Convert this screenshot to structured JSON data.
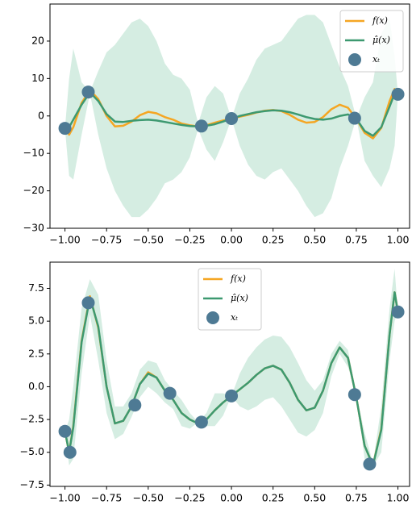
{
  "chart_data": [
    {
      "type": "line",
      "x": [
        -1,
        -0.975,
        -0.95,
        -0.9,
        -0.85,
        -0.8,
        -0.75,
        -0.7,
        -0.65,
        -0.6,
        -0.55,
        -0.5,
        -0.45,
        -0.4,
        -0.35,
        -0.3,
        -0.25,
        -0.2,
        -0.15,
        -0.1,
        -0.05,
        0,
        0.05,
        0.1,
        0.15,
        0.2,
        0.25,
        0.3,
        0.35,
        0.4,
        0.45,
        0.5,
        0.55,
        0.6,
        0.65,
        0.7,
        0.75,
        0.8,
        0.85,
        0.9,
        0.95,
        0.98,
        1.0
      ],
      "series": [
        {
          "name": "f(x)",
          "color": "#f5a623",
          "values": [
            -3.4,
            -5.0,
            -3.0,
            3.5,
            6.9,
            4.5,
            0,
            -2.8,
            -2.6,
            -1.5,
            0.2,
            1.1,
            0.7,
            -0.3,
            -1.0,
            -2.0,
            -2.5,
            -2.8,
            -2.5,
            -1.8,
            -1.2,
            -0.7,
            -0.2,
            0.3,
            0.9,
            1.4,
            1.6,
            1.3,
            0.3,
            -1.0,
            -1.8,
            -1.6,
            -0.3,
            1.8,
            3.0,
            2.2,
            -0.8,
            -4.5,
            -6.0,
            -3.2,
            4.0,
            7.2,
            5.7
          ]
        },
        {
          "name": "μ̂(x)",
          "color": "#3d9970",
          "values": [
            -3.3,
            -3.0,
            -1.0,
            3.0,
            6.3,
            4.0,
            0.5,
            -1.5,
            -1.6,
            -1.3,
            -1.1,
            -1.0,
            -1.2,
            -1.6,
            -2.0,
            -2.4,
            -2.7,
            -2.8,
            -2.6,
            -2.2,
            -1.5,
            -0.7,
            0,
            0.5,
            1.0,
            1.3,
            1.5,
            1.4,
            1.0,
            0.4,
            -0.3,
            -0.8,
            -1.0,
            -0.7,
            0,
            0.4,
            -0.7,
            -4.0,
            -5.3,
            -3.0,
            2.5,
            6.0,
            5.8
          ]
        }
      ],
      "band": {
        "color": "#d5ede2",
        "upper": [
          -3.3,
          10,
          18,
          9,
          6.5,
          12,
          17,
          19,
          22,
          25,
          26,
          24,
          20,
          14,
          11,
          10,
          7,
          -2,
          5,
          8,
          6,
          -0.7,
          6,
          10,
          15,
          18,
          19,
          20,
          23,
          26,
          27,
          27,
          25,
          19,
          13,
          8,
          -0.6,
          5,
          9,
          22,
          26,
          16,
          5.8
        ],
        "lower": [
          -3.3,
          -16,
          -17,
          -5,
          6,
          -5,
          -14,
          -20,
          -24,
          -27,
          -27,
          -25,
          -22,
          -18,
          -17,
          -15,
          -11,
          -3.5,
          -9,
          -12,
          -7,
          -0.7,
          -8,
          -13,
          -16,
          -17,
          -15,
          -14,
          -17,
          -20,
          -24,
          -27,
          -26,
          -22,
          -14,
          -8,
          -0.6,
          -12,
          -16,
          -19,
          -14,
          -8,
          5.8
        ]
      },
      "points": {
        "name": "xₜ",
        "color": "#4e7a94",
        "x": [
          -1,
          -0.86,
          -0.18,
          0,
          0.74,
          1.0
        ],
        "values": [
          -3.3,
          6.4,
          -2.7,
          -0.7,
          -0.6,
          5.8
        ]
      },
      "xlim": [
        -1.09,
        1.07
      ],
      "xticks": [
        {
          "value": -1,
          "label": "−1.00"
        },
        {
          "value": -0.75,
          "label": "−0.75"
        },
        {
          "value": -0.5,
          "label": "−0.50"
        },
        {
          "value": -0.25,
          "label": "−0.25"
        },
        {
          "value": 0,
          "label": "0.00"
        },
        0.25,
        {
          "value": 0.5,
          "label": "0.50"
        },
        0.75,
        {
          "value": 1,
          "label": "1.00"
        }
      ],
      "ylim": [
        -30,
        29.9
      ],
      "yticks": [
        {
          "value": -30,
          "label": "−30"
        },
        {
          "value": -20,
          "label": "−20"
        },
        {
          "value": -10,
          "label": "−10"
        },
        0,
        10,
        20
      ],
      "legend": "upper right"
    },
    {
      "type": "line",
      "x": [
        -1,
        -0.975,
        -0.95,
        -0.9,
        -0.85,
        -0.8,
        -0.75,
        -0.7,
        -0.65,
        -0.6,
        -0.55,
        -0.5,
        -0.45,
        -0.4,
        -0.35,
        -0.3,
        -0.25,
        -0.2,
        -0.15,
        -0.1,
        -0.05,
        0,
        0.05,
        0.1,
        0.15,
        0.2,
        0.25,
        0.3,
        0.35,
        0.4,
        0.45,
        0.5,
        0.55,
        0.6,
        0.65,
        0.7,
        0.75,
        0.8,
        0.85,
        0.9,
        0.95,
        0.98,
        1.0
      ],
      "series": [
        {
          "name": "f(x)",
          "color": "#f5a623",
          "values": [
            -3.4,
            -5.0,
            -3.0,
            3.5,
            6.9,
            4.5,
            0,
            -2.8,
            -2.6,
            -1.5,
            0.2,
            1.1,
            0.7,
            -0.3,
            -1.0,
            -2.0,
            -2.5,
            -2.8,
            -2.5,
            -1.8,
            -1.2,
            -0.7,
            -0.2,
            0.3,
            0.9,
            1.4,
            1.6,
            1.3,
            0.3,
            -1.0,
            -1.8,
            -1.6,
            -0.3,
            1.8,
            3.0,
            2.2,
            -0.8,
            -4.5,
            -6.0,
            -3.2,
            4.0,
            7.2,
            5.7
          ]
        },
        {
          "name": "μ̂(x)",
          "color": "#3d9970",
          "values": [
            -3.4,
            -5.0,
            -3.1,
            3.4,
            6.8,
            4.6,
            0,
            -2.8,
            -2.6,
            -1.5,
            0.2,
            1.0,
            0.7,
            -0.3,
            -1.0,
            -2.0,
            -2.5,
            -2.8,
            -2.5,
            -1.8,
            -1.2,
            -0.7,
            -0.2,
            0.3,
            0.9,
            1.4,
            1.6,
            1.3,
            0.3,
            -1.0,
            -1.8,
            -1.6,
            -0.3,
            1.8,
            3.0,
            2.2,
            -0.8,
            -4.5,
            -6.0,
            -3.3,
            4.0,
            7.2,
            5.7
          ]
        }
      ],
      "band": {
        "color": "#d5ede2",
        "upper": [
          -3.4,
          -2.5,
          0,
          6,
          8.2,
          7,
          2,
          -1.5,
          -1.5,
          -0.5,
          1.3,
          2,
          1.8,
          0.5,
          -0.3,
          -1,
          -2,
          -2.7,
          -2,
          -0.5,
          -0.5,
          -0.7,
          1,
          2.2,
          3,
          3.6,
          3.9,
          3.8,
          3.0,
          1.8,
          0.5,
          -0.3,
          0.5,
          2.5,
          3.5,
          2.8,
          -0.6,
          -3.5,
          -5.8,
          -1.5,
          6,
          9,
          5.7
        ],
        "lower": [
          -3.4,
          -6,
          -5.5,
          1,
          5.5,
          2,
          -2,
          -4,
          -3.6,
          -2.3,
          -0.8,
          0,
          -0.5,
          -1.2,
          -1.7,
          -3,
          -3.2,
          -2.7,
          -3,
          -3,
          -2.2,
          -0.7,
          -1.5,
          -1.8,
          -1.5,
          -1,
          -0.8,
          -1.5,
          -2.5,
          -3.5,
          -3.8,
          -3.3,
          -2,
          0.8,
          2.5,
          1.5,
          -0.6,
          -5.5,
          -6.1,
          -5,
          2,
          5,
          5.7
        ]
      },
      "points": {
        "name": "xₜ",
        "color": "#4e7a94",
        "x": [
          -1,
          -0.97,
          -0.86,
          -0.58,
          -0.37,
          -0.18,
          0,
          0.74,
          0.83,
          1.0
        ],
        "values": [
          -3.4,
          -5.0,
          6.4,
          -1.4,
          -0.5,
          -2.7,
          -0.7,
          -0.6,
          -5.9,
          5.7
        ]
      },
      "xlim": [
        -1.09,
        1.07
      ],
      "xticks": [
        {
          "value": -1,
          "label": "−1.00"
        },
        {
          "value": -0.75,
          "label": "−0.75"
        },
        {
          "value": -0.5,
          "label": "−0.50"
        },
        {
          "value": -0.25,
          "label": "−0.25"
        },
        {
          "value": 0,
          "label": "0.00"
        },
        0.25,
        {
          "value": 0.5,
          "label": "0.50"
        },
        0.75,
        {
          "value": 1,
          "label": "1.00"
        }
      ],
      "ylim": [
        -7.6,
        9.5
      ],
      "yticks": [
        {
          "value": -7.5,
          "label": "−7.5"
        },
        {
          "value": -5,
          "label": "−5.0"
        },
        {
          "value": -2.5,
          "label": "−2.5"
        },
        {
          "value": 0,
          "label": "0.0"
        },
        2.5,
        {
          "value": 5,
          "label": "5.0"
        },
        7.5
      ],
      "legend": "upper center"
    }
  ]
}
